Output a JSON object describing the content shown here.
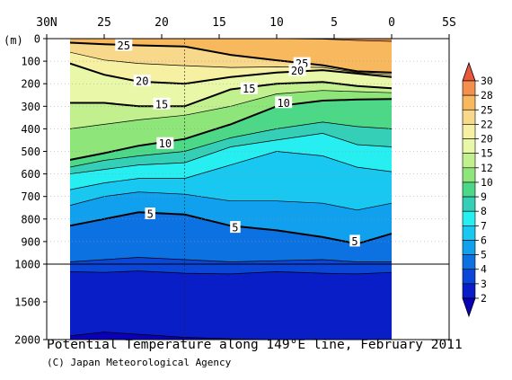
{
  "chart_data": {
    "type": "heatmap",
    "title": "Potential Temperature along 149°E line, February 2011",
    "credit": "(C) Japan Meteorological Agency",
    "x_axis": {
      "ticks": [
        "30N",
        "25",
        "20",
        "15",
        "10",
        "5",
        "0",
        "5S"
      ],
      "tick_values": [
        30,
        25,
        20,
        15,
        10,
        5,
        0,
        -5
      ],
      "range": [
        30,
        -5
      ],
      "data_range": [
        28,
        0
      ]
    },
    "y_axis": {
      "unit": "(m)",
      "upper_ticks": [
        "0",
        "100",
        "200",
        "300",
        "400",
        "500",
        "600",
        "700",
        "800",
        "900",
        "1000"
      ],
      "upper_values": [
        0,
        100,
        200,
        300,
        400,
        500,
        600,
        700,
        800,
        900,
        1000
      ],
      "lower_ticks": [
        "1500",
        "2000"
      ],
      "lower_values": [
        1500,
        2000
      ],
      "range": [
        0,
        2000
      ],
      "scale_break_at": 1000
    },
    "colorbar": {
      "labels": [
        "30",
        "28",
        "25",
        "22",
        "20",
        "15",
        "12",
        "10",
        "9",
        "8",
        "7",
        "6",
        "5",
        "4",
        "3",
        "2"
      ],
      "levels": [
        30,
        28,
        25,
        22,
        20,
        15,
        12,
        10,
        9,
        8,
        7,
        6,
        5,
        4,
        3,
        2
      ],
      "colors": [
        "#e8583c",
        "#f58f4c",
        "#f8b85e",
        "#f8d88a",
        "#f6f0a2",
        "#e9f7a8",
        "#c2f08f",
        "#8ee57a",
        "#4cd886",
        "#34cfb6",
        "#27eef0",
        "#18c8f0",
        "#10a0ee",
        "#0c72e2",
        "#0a46d8",
        "#0a1ec8",
        "#0a00b8"
      ]
    },
    "contour_labels": [
      {
        "text": "25",
        "lat": 23.3,
        "depth": 30
      },
      {
        "text": "20",
        "lat": 21.7,
        "depth": 188
      },
      {
        "text": "15",
        "lat": 20.0,
        "depth": 290
      },
      {
        "text": "10",
        "lat": 19.7,
        "depth": 465
      },
      {
        "text": "5",
        "lat": 21.0,
        "depth": 777
      },
      {
        "text": "25",
        "lat": 7.8,
        "depth": 110
      },
      {
        "text": "20",
        "lat": 8.2,
        "depth": 142
      },
      {
        "text": "15",
        "lat": 12.4,
        "depth": 222
      },
      {
        "text": "10",
        "lat": 9.4,
        "depth": 284
      },
      {
        "text": "5",
        "lat": 13.6,
        "depth": 837
      },
      {
        "text": "5",
        "lat": 3.2,
        "depth": 898
      }
    ],
    "isotherms": [
      {
        "value": 25,
        "lats": [
          28,
          25,
          22,
          18,
          14,
          10,
          6,
          3,
          0
        ],
        "depths": [
          18,
          25,
          30,
          35,
          72,
          96,
          118,
          145,
          150
        ]
      },
      {
        "value": 20,
        "lats": [
          28,
          25,
          22,
          18,
          14,
          10,
          6,
          3,
          0
        ],
        "depths": [
          110,
          160,
          190,
          200,
          170,
          150,
          140,
          155,
          170
        ]
      },
      {
        "value": 15,
        "lats": [
          28,
          25,
          22,
          18,
          14,
          10,
          6,
          3,
          0
        ],
        "depths": [
          285,
          285,
          300,
          300,
          225,
          200,
          192,
          210,
          220
        ]
      },
      {
        "value": 10,
        "lats": [
          28,
          25,
          22,
          18,
          14,
          10,
          6,
          3,
          0
        ],
        "depths": [
          538,
          508,
          475,
          445,
          380,
          300,
          275,
          270,
          268
        ]
      },
      {
        "value": 5,
        "lats": [
          28,
          25,
          22,
          18,
          14,
          10,
          6,
          3,
          0
        ],
        "depths": [
          830,
          800,
          770,
          780,
          830,
          850,
          880,
          910,
          865
        ]
      }
    ]
  }
}
